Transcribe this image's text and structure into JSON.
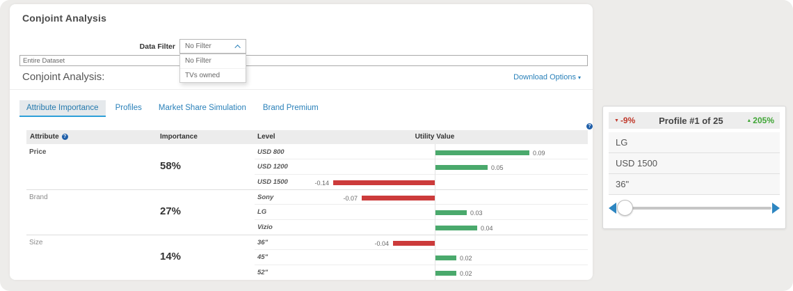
{
  "page": {
    "title": "Conjoint Analysis",
    "section_title": "Conjoint Analysis:",
    "download_options_label": "Download Options",
    "data_filter": {
      "label": "Data Filter",
      "selected": "No Filter",
      "options": [
        "No Filter",
        "TVs owned"
      ]
    },
    "dataset_input": {
      "value": "Entire Dataset"
    },
    "tabs": [
      {
        "label": "Attribute Importance",
        "active": true
      },
      {
        "label": "Profiles",
        "active": false
      },
      {
        "label": "Market Share Simulation",
        "active": false
      },
      {
        "label": "Brand Premium",
        "active": false
      }
    ]
  },
  "chart_data": {
    "type": "bar",
    "title": "Attribute Importance",
    "columns": [
      "Attribute",
      "Importance",
      "Level",
      "Utility Value"
    ],
    "legend": "none",
    "zero_axis_line": true,
    "colors": {
      "positive": "#4aa96c",
      "negative": "#cc3b3b"
    },
    "groups": [
      {
        "attribute": "Price",
        "importance": "58%",
        "levels": [
          {
            "level": "USD 800",
            "utility": 0.09
          },
          {
            "level": "USD 1200",
            "utility": 0.05
          },
          {
            "level": "USD 1500",
            "utility": -0.14
          }
        ]
      },
      {
        "attribute": "Brand",
        "importance": "27%",
        "levels": [
          {
            "level": "Sony",
            "utility": -0.07
          },
          {
            "level": "LG",
            "utility": 0.03
          },
          {
            "level": "Vizio",
            "utility": 0.04
          }
        ]
      },
      {
        "attribute": "Size",
        "importance": "14%",
        "levels": [
          {
            "level": "36\"",
            "utility": -0.04
          },
          {
            "level": "45\"",
            "utility": 0.02
          },
          {
            "level": "52\"",
            "utility": 0.02
          }
        ]
      }
    ]
  },
  "profile_card": {
    "decrease": "-9%",
    "title": "Profile #1 of 25",
    "increase": "205%",
    "attributes": [
      "LG",
      "USD 1500",
      "36\""
    ]
  }
}
